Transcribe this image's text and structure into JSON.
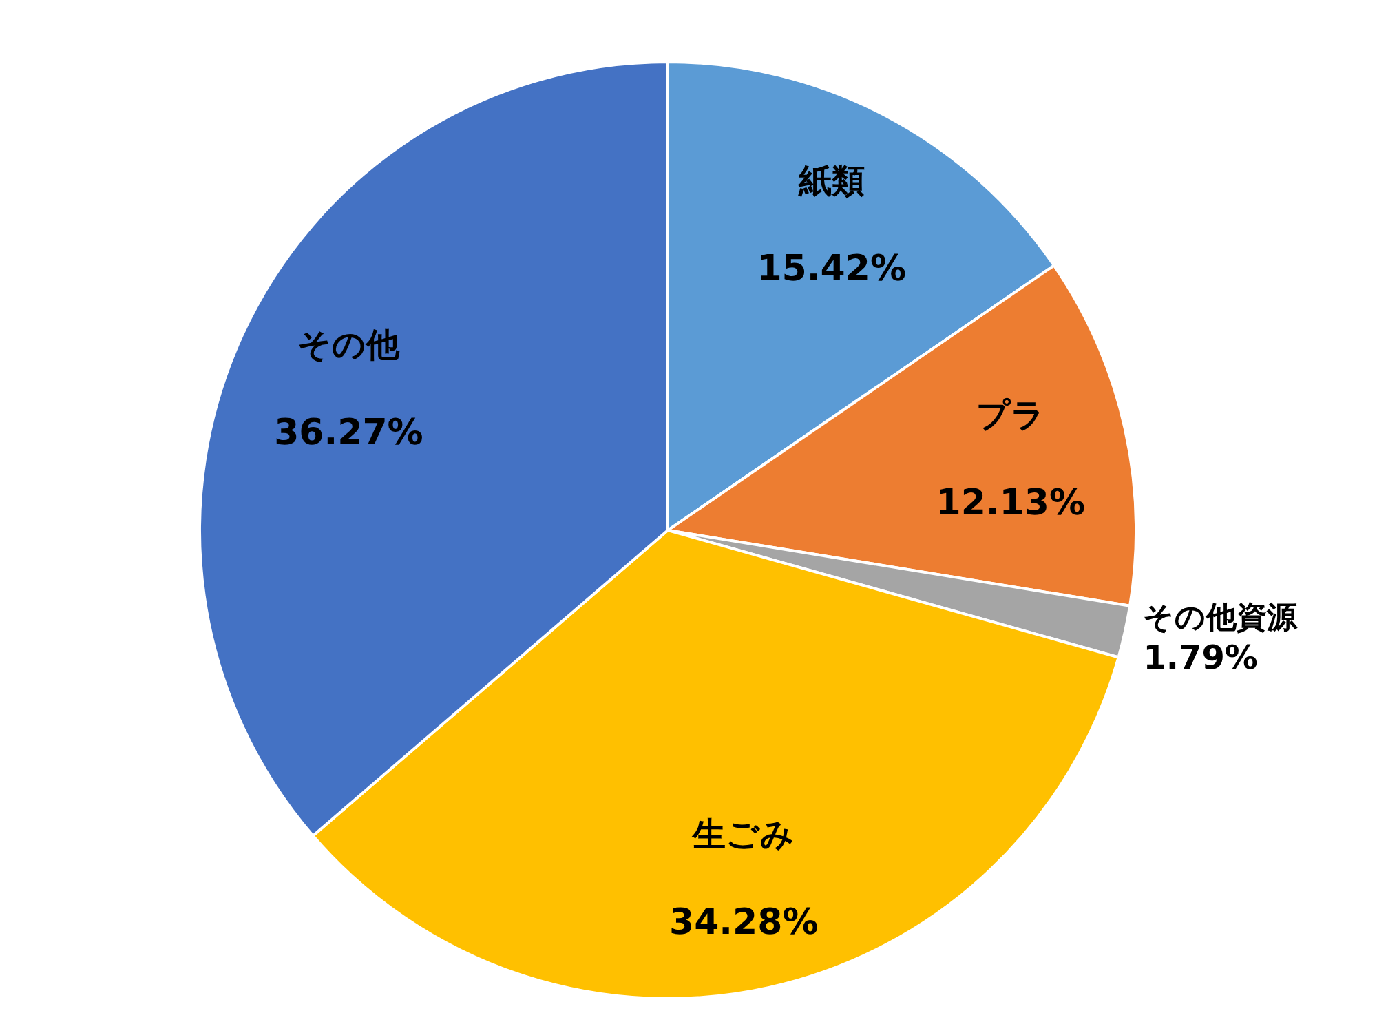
{
  "chart_data": {
    "type": "pie",
    "categories": [
      "紙類",
      "プラ",
      "その他資源",
      "生ごみ",
      "その他"
    ],
    "values": [
      15.42,
      12.13,
      1.79,
      34.28,
      36.27
    ],
    "colors": [
      "#5b9bd5",
      "#ed7d31",
      "#a5a5a5",
      "#ffc000",
      "#4472c4"
    ],
    "value_labels": [
      "15.42%",
      "12.13%",
      "1.79%",
      "34.28%",
      "36.27%"
    ]
  }
}
